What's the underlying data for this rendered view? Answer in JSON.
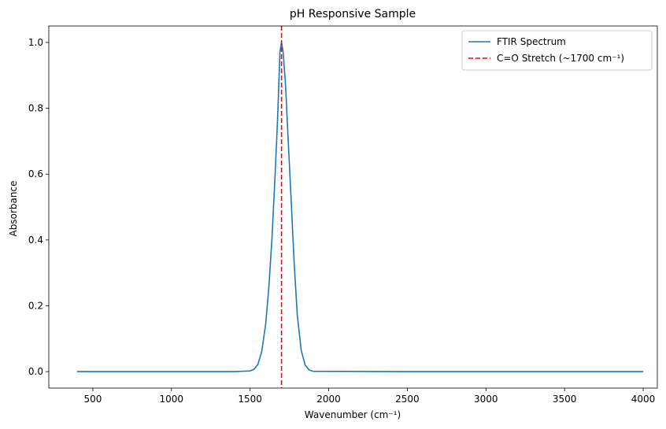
{
  "chart_data": {
    "type": "line",
    "title": "pH Responsive Sample",
    "xlabel": "Wavenumber (cm⁻¹)",
    "ylabel": "Absorbance",
    "xlim": [
      220,
      4090
    ],
    "ylim": [
      -0.05,
      1.05
    ],
    "xticks": [
      500,
      1000,
      1500,
      2000,
      2500,
      3000,
      3500,
      4000
    ],
    "yticks": [
      0.0,
      0.2,
      0.4,
      0.6,
      0.8,
      1.0
    ],
    "xtick_labels": [
      "500",
      "1000",
      "1500",
      "2000",
      "2500",
      "3000",
      "3500",
      "4000"
    ],
    "ytick_labels": [
      "0.0",
      "0.2",
      "0.4",
      "0.6",
      "0.8",
      "1.0"
    ],
    "grid": false,
    "legend_position": "top-right",
    "series": [
      {
        "name": "FTIR Spectrum",
        "color": "#1f77b4",
        "style": "solid",
        "x": [
          400,
          1000,
          1400,
          1500,
          1525,
          1550,
          1575,
          1600,
          1620,
          1640,
          1660,
          1675,
          1690,
          1700,
          1710,
          1725,
          1740,
          1760,
          1780,
          1800,
          1825,
          1850,
          1875,
          1900,
          2500,
          3000,
          3500,
          4000
        ],
        "values": [
          0.0,
          0.0,
          0.0,
          0.002,
          0.007,
          0.022,
          0.063,
          0.148,
          0.26,
          0.411,
          0.607,
          0.768,
          0.972,
          1.0,
          0.972,
          0.876,
          0.726,
          0.533,
          0.333,
          0.173,
          0.065,
          0.02,
          0.005,
          0.001,
          0.0,
          0.0,
          0.0,
          0.0
        ]
      },
      {
        "name": "C=O Stretch (~1700 cm⁻¹)",
        "color": "#ff0000",
        "style": "dashed",
        "vline_x": 1700
      }
    ]
  }
}
